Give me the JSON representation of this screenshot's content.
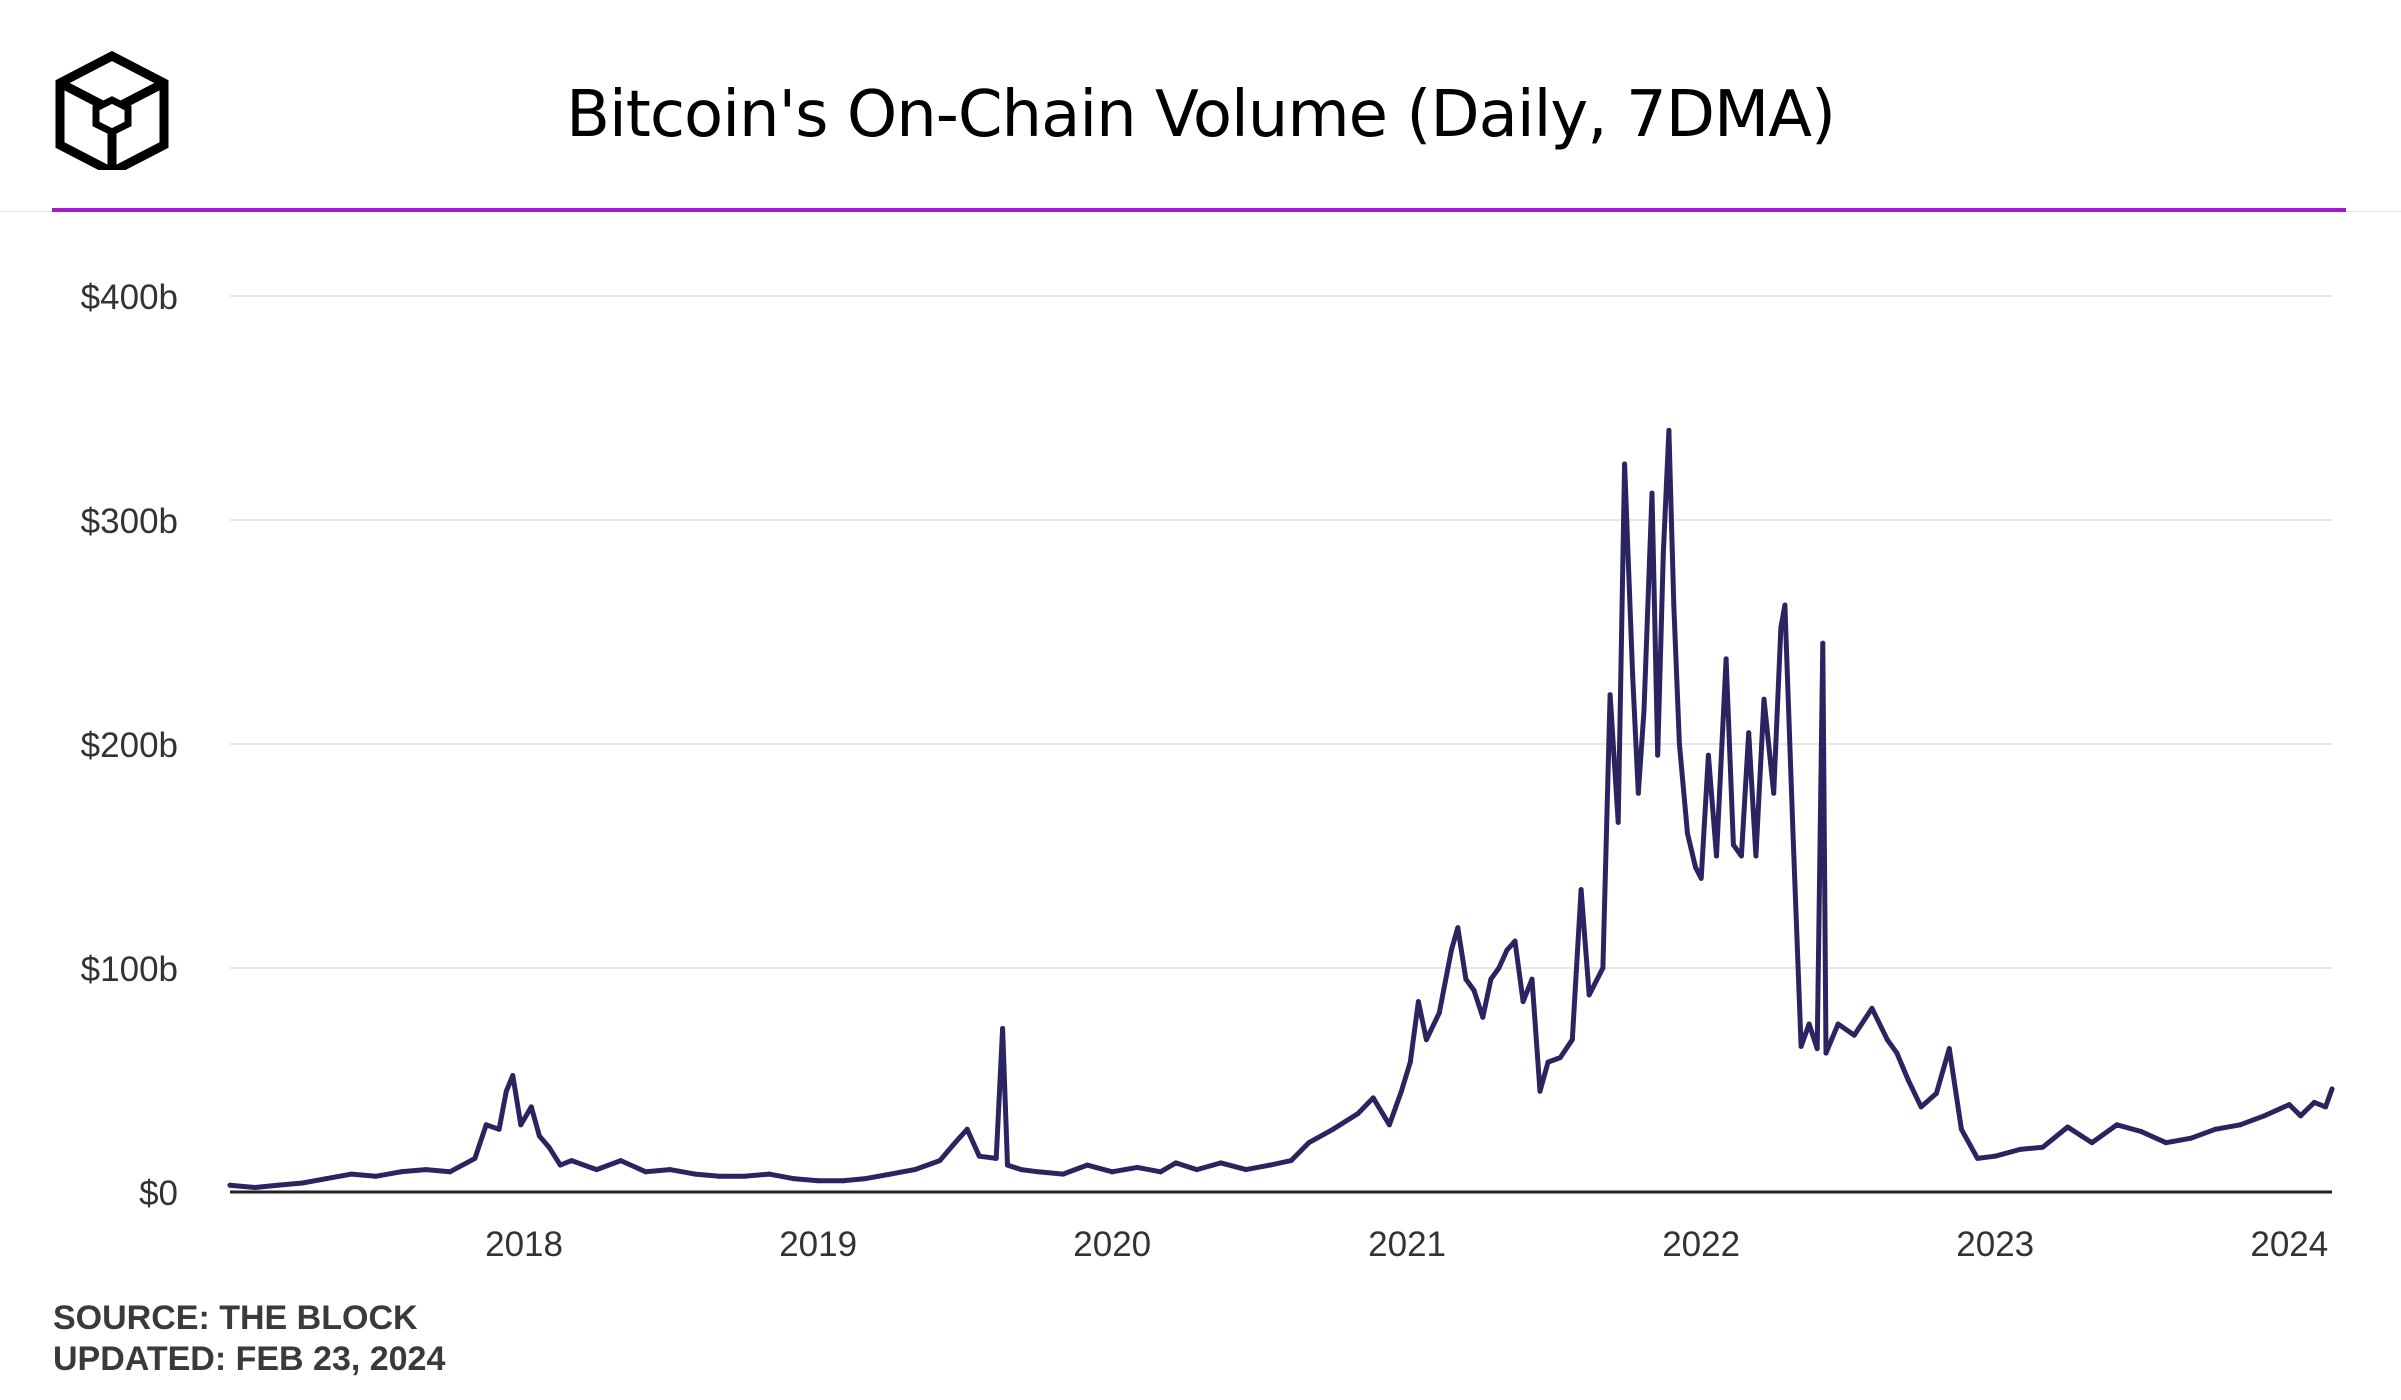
{
  "header": {
    "title": "Bitcoin's On-Chain Volume (Daily, 7DMA)",
    "logo_icon": "the-block-cube-logo",
    "accent_color": "#a21ad0"
  },
  "footer": {
    "source": "SOURCE: THE BLOCK",
    "updated": "UPDATED: FEB 23, 2024"
  },
  "chart_data": {
    "type": "line",
    "title": "Bitcoin's On-Chain Volume (Daily, 7DMA)",
    "xlabel": "",
    "ylabel": "",
    "x_tick_labels": [
      "2018",
      "2019",
      "2020",
      "2021",
      "2022",
      "2023",
      "2024"
    ],
    "y_tick_labels": [
      "$0",
      "$100b",
      "$200b",
      "$300b",
      "$400b"
    ],
    "y_ticks": [
      0,
      100,
      200,
      300,
      400
    ],
    "ylim": [
      0,
      400
    ],
    "xlim": [
      "2017-01-01",
      "2024-02-23"
    ],
    "grid": true,
    "line_color": "#2a2560",
    "series": [
      {
        "values_unit": "billions USD",
        "points": [
          [
            "2017-01-01",
            3
          ],
          [
            "2017-02-01",
            2
          ],
          [
            "2017-03-01",
            3
          ],
          [
            "2017-04-01",
            4
          ],
          [
            "2017-05-01",
            6
          ],
          [
            "2017-06-01",
            8
          ],
          [
            "2017-07-01",
            7
          ],
          [
            "2017-08-01",
            9
          ],
          [
            "2017-09-01",
            10
          ],
          [
            "2017-10-01",
            9
          ],
          [
            "2017-11-01",
            15
          ],
          [
            "2017-11-15",
            30
          ],
          [
            "2017-12-01",
            28
          ],
          [
            "2017-12-10",
            45
          ],
          [
            "2017-12-18",
            52
          ],
          [
            "2017-12-28",
            30
          ],
          [
            "2018-01-10",
            38
          ],
          [
            "2018-01-20",
            25
          ],
          [
            "2018-02-01",
            20
          ],
          [
            "2018-02-15",
            12
          ],
          [
            "2018-03-01",
            14
          ],
          [
            "2018-04-01",
            10
          ],
          [
            "2018-05-01",
            14
          ],
          [
            "2018-06-01",
            9
          ],
          [
            "2018-07-01",
            10
          ],
          [
            "2018-08-01",
            8
          ],
          [
            "2018-09-01",
            7
          ],
          [
            "2018-10-01",
            7
          ],
          [
            "2018-11-01",
            8
          ],
          [
            "2018-12-01",
            6
          ],
          [
            "2019-01-01",
            5
          ],
          [
            "2019-02-01",
            5
          ],
          [
            "2019-03-01",
            6
          ],
          [
            "2019-04-01",
            8
          ],
          [
            "2019-05-01",
            10
          ],
          [
            "2019-06-01",
            14
          ],
          [
            "2019-06-20",
            22
          ],
          [
            "2019-07-05",
            28
          ],
          [
            "2019-07-20",
            16
          ],
          [
            "2019-08-10",
            15
          ],
          [
            "2019-08-18",
            73
          ],
          [
            "2019-08-24",
            12
          ],
          [
            "2019-09-10",
            10
          ],
          [
            "2019-10-01",
            9
          ],
          [
            "2019-11-01",
            8
          ],
          [
            "2019-12-01",
            12
          ],
          [
            "2020-01-01",
            9
          ],
          [
            "2020-02-01",
            11
          ],
          [
            "2020-03-01",
            9
          ],
          [
            "2020-03-20",
            13
          ],
          [
            "2020-04-15",
            10
          ],
          [
            "2020-05-15",
            13
          ],
          [
            "2020-06-15",
            10
          ],
          [
            "2020-07-15",
            12
          ],
          [
            "2020-08-10",
            14
          ],
          [
            "2020-09-01",
            22
          ],
          [
            "2020-10-01",
            28
          ],
          [
            "2020-11-01",
            35
          ],
          [
            "2020-11-20",
            42
          ],
          [
            "2020-12-10",
            30
          ],
          [
            "2020-12-25",
            45
          ],
          [
            "2021-01-05",
            58
          ],
          [
            "2021-01-15",
            85
          ],
          [
            "2021-01-25",
            68
          ],
          [
            "2021-02-10",
            80
          ],
          [
            "2021-02-25",
            108
          ],
          [
            "2021-03-05",
            118
          ],
          [
            "2021-03-15",
            95
          ],
          [
            "2021-03-25",
            90
          ],
          [
            "2021-04-05",
            78
          ],
          [
            "2021-04-15",
            95
          ],
          [
            "2021-04-25",
            100
          ],
          [
            "2021-05-05",
            108
          ],
          [
            "2021-05-15",
            112
          ],
          [
            "2021-05-25",
            85
          ],
          [
            "2021-06-05",
            95
          ],
          [
            "2021-06-15",
            45
          ],
          [
            "2021-06-25",
            58
          ],
          [
            "2021-07-10",
            60
          ],
          [
            "2021-07-25",
            68
          ],
          [
            "2021-08-05",
            135
          ],
          [
            "2021-08-15",
            88
          ],
          [
            "2021-09-01",
            100
          ],
          [
            "2021-09-10",
            222
          ],
          [
            "2021-09-20",
            165
          ],
          [
            "2021-09-28",
            325
          ],
          [
            "2021-10-08",
            230
          ],
          [
            "2021-10-15",
            178
          ],
          [
            "2021-10-22",
            215
          ],
          [
            "2021-11-01",
            312
          ],
          [
            "2021-11-08",
            195
          ],
          [
            "2021-11-15",
            285
          ],
          [
            "2021-11-22",
            340
          ],
          [
            "2021-11-28",
            262
          ],
          [
            "2021-12-05",
            200
          ],
          [
            "2021-12-15",
            160
          ],
          [
            "2021-12-25",
            145
          ],
          [
            "2022-01-01",
            140
          ],
          [
            "2022-01-10",
            195
          ],
          [
            "2022-01-20",
            150
          ],
          [
            "2022-02-01",
            238
          ],
          [
            "2022-02-10",
            155
          ],
          [
            "2022-02-20",
            150
          ],
          [
            "2022-03-01",
            205
          ],
          [
            "2022-03-10",
            150
          ],
          [
            "2022-03-20",
            220
          ],
          [
            "2022-04-01",
            178
          ],
          [
            "2022-04-10",
            252
          ],
          [
            "2022-04-15",
            262
          ],
          [
            "2022-04-25",
            160
          ],
          [
            "2022-05-05",
            65
          ],
          [
            "2022-05-15",
            75
          ],
          [
            "2022-05-25",
            64
          ],
          [
            "2022-06-01",
            245
          ],
          [
            "2022-06-05",
            62
          ],
          [
            "2022-06-20",
            75
          ],
          [
            "2022-07-10",
            70
          ],
          [
            "2022-08-01",
            82
          ],
          [
            "2022-08-20",
            68
          ],
          [
            "2022-09-01",
            62
          ],
          [
            "2022-09-15",
            50
          ],
          [
            "2022-10-01",
            38
          ],
          [
            "2022-10-20",
            44
          ],
          [
            "2022-11-05",
            64
          ],
          [
            "2022-11-20",
            28
          ],
          [
            "2022-12-10",
            15
          ],
          [
            "2023-01-01",
            16
          ],
          [
            "2023-02-01",
            19
          ],
          [
            "2023-03-01",
            20
          ],
          [
            "2023-04-01",
            29
          ],
          [
            "2023-05-01",
            22
          ],
          [
            "2023-06-01",
            30
          ],
          [
            "2023-07-01",
            27
          ],
          [
            "2023-08-01",
            22
          ],
          [
            "2023-09-01",
            24
          ],
          [
            "2023-10-01",
            28
          ],
          [
            "2023-11-01",
            30
          ],
          [
            "2023-12-01",
            34
          ],
          [
            "2024-01-01",
            39
          ],
          [
            "2024-01-15",
            34
          ],
          [
            "2024-02-01",
            40
          ],
          [
            "2024-02-15",
            38
          ],
          [
            "2024-02-23",
            46
          ]
        ]
      }
    ]
  }
}
